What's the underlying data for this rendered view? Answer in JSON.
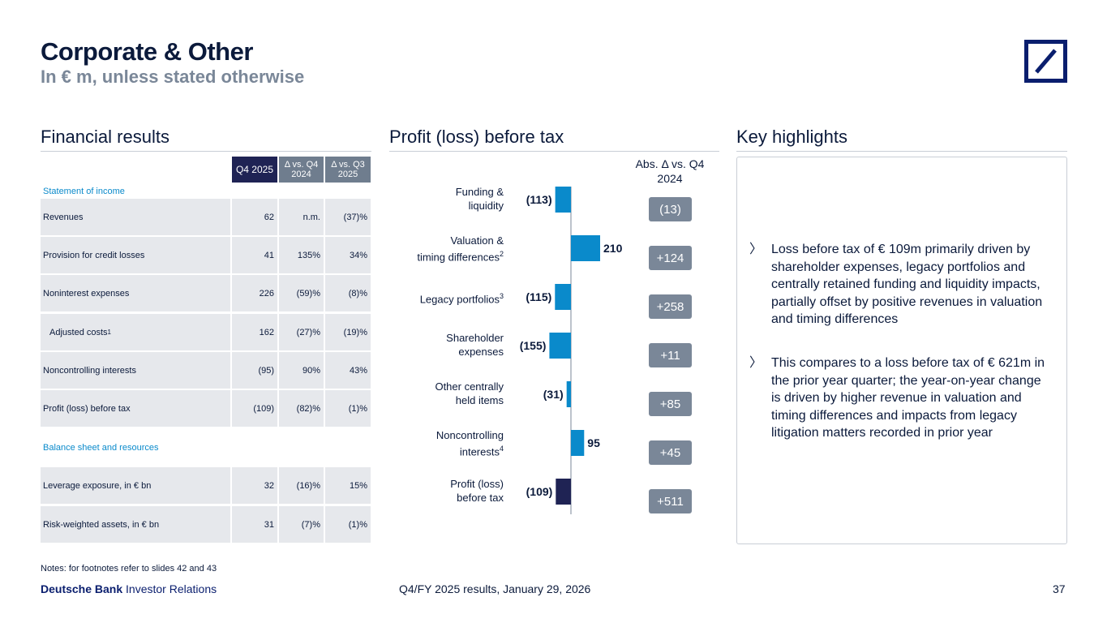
{
  "header": {
    "title": "Corporate & Other",
    "subtitle": "In € m, unless stated otherwise"
  },
  "sections": {
    "financial": "Financial results",
    "profit": "Profit (loss) before tax",
    "highlights": "Key highlights"
  },
  "table": {
    "headers": [
      "Q4 2025",
      "Δ vs. Q4 2024",
      "Δ vs. Q3 2025"
    ],
    "group1": "Statement of income",
    "group2": "Balance sheet and resources",
    "rows": [
      {
        "label": "Revenues",
        "v1": "62",
        "v2": "n.m.",
        "v3": "(37)%"
      },
      {
        "label": "Provision for credit losses",
        "v1": "41",
        "v2": "135%",
        "v3": "34%"
      },
      {
        "label": "Noninterest expenses",
        "v1": "226",
        "v2": "(59)%",
        "v3": "(8)%"
      },
      {
        "label": "Adjusted costs",
        "sup": "1",
        "v1": "162",
        "v2": "(27)%",
        "v3": "(19)%"
      },
      {
        "label": "Noncontrolling interests",
        "v1": "(95)",
        "v2": "90%",
        "v3": "43%"
      },
      {
        "label": "Profit (loss) before tax",
        "v1": "(109)",
        "v2": "(82)%",
        "v3": "(1)%"
      },
      {
        "label": "Leverage exposure, in € bn",
        "v1": "32",
        "v2": "(16)%",
        "v3": "15%"
      },
      {
        "label": "Risk-weighted assets, in € bn",
        "v1": "31",
        "v2": "(7)%",
        "v3": "(1)%"
      }
    ]
  },
  "chart_data": {
    "type": "bar",
    "orientation": "horizontal",
    "title": "Profit (loss) before tax",
    "categories": [
      "Funding & liquidity",
      "Valuation & timing differences",
      "Legacy portfolios",
      "Shareholder expenses",
      "Other centrally held items",
      "Noncontrolling interests",
      "Profit (loss) before tax"
    ],
    "category_lines": [
      [
        "Funding &",
        "liquidity"
      ],
      [
        "Valuation &",
        "timing differences"
      ],
      [
        "Legacy portfolios"
      ],
      [
        "Shareholder",
        "expenses"
      ],
      [
        "Other centrally",
        "held items"
      ],
      [
        "Noncontrolling",
        "interests"
      ],
      [
        "Profit (loss)",
        "before tax"
      ]
    ],
    "category_sups": [
      "",
      "2",
      "3",
      "",
      "",
      "4",
      ""
    ],
    "values": [
      -113,
      210,
      -115,
      -155,
      -31,
      95,
      -109
    ],
    "value_labels": [
      "(113)",
      "210",
      "(115)",
      "(155)",
      "(31)",
      "95",
      "(109)"
    ],
    "abs_delta_header": "Abs. Δ vs. Q4 2024",
    "abs_delta": [
      "(13)",
      "+124",
      "+258",
      "+11",
      "+85",
      "+45",
      "+511"
    ],
    "colors": {
      "component": "#0a8acb",
      "total": "#1f2354",
      "badge": "#7a8798"
    }
  },
  "highlights": [
    "Loss before tax of € 109m primarily driven by shareholder expenses, legacy portfolios and centrally retained funding and liquidity impacts, partially offset by positive revenues in valuation and timing differences",
    "This compares to a loss before tax of € 621m in the prior year quarter; the year-on-year change is driven by higher revenue in valuation and timing differences and impacts from legacy litigation matters recorded in prior year"
  ],
  "footer": {
    "notes": "Notes: for footnotes refer to slides 42 and 43",
    "brand_bold": "Deutsche Bank",
    "brand_rest": "Investor Relations",
    "center": "Q4/FY 2025 results, January 29, 2026",
    "page": "37"
  }
}
